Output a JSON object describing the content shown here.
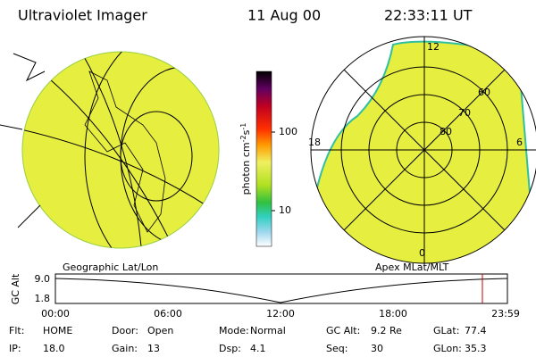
{
  "header": {
    "title": "Ultraviolet Imager",
    "date": "11 Aug 00",
    "time": "22:33:11 UT"
  },
  "colorbar": {
    "ticks": [
      "100",
      "10"
    ],
    "unit": "photon cm",
    "exp1": "-2",
    "unit2": "s",
    "exp2": "-1"
  },
  "left_panel": {
    "label": "Geographic Lat/Lon"
  },
  "right_panel": {
    "label": "Apex MLat/MLT",
    "mlt_labels": [
      "12",
      "18",
      "6",
      "0"
    ],
    "lat_labels": [
      "60",
      "70",
      "80"
    ]
  },
  "orbit_plot": {
    "axis_label": "GC Alt",
    "y_labels": [
      "9.0",
      "1.8"
    ],
    "x_labels": [
      "00:00",
      "06:00",
      "12:00",
      "18:00",
      "23:59"
    ]
  },
  "info": [
    [
      {
        "label": "Flt:",
        "value": "HOME"
      },
      {
        "label": "Door:",
        "value": "Open"
      },
      {
        "label": "Mode:",
        "value": "Normal"
      },
      {
        "label": "GC Alt:",
        "value": "9.2 Re"
      },
      {
        "label": "GLat:",
        "value": "77.4"
      }
    ],
    [
      {
        "label": "IP:",
        "value": "18.0"
      },
      {
        "label": "Gain:",
        "value": "13"
      },
      {
        "label": "Dsp:",
        "value": "4.1"
      },
      {
        "label": "Seq:",
        "value": "30"
      },
      {
        "label": "GLon:",
        "value": "35.3"
      }
    ]
  ]
}
